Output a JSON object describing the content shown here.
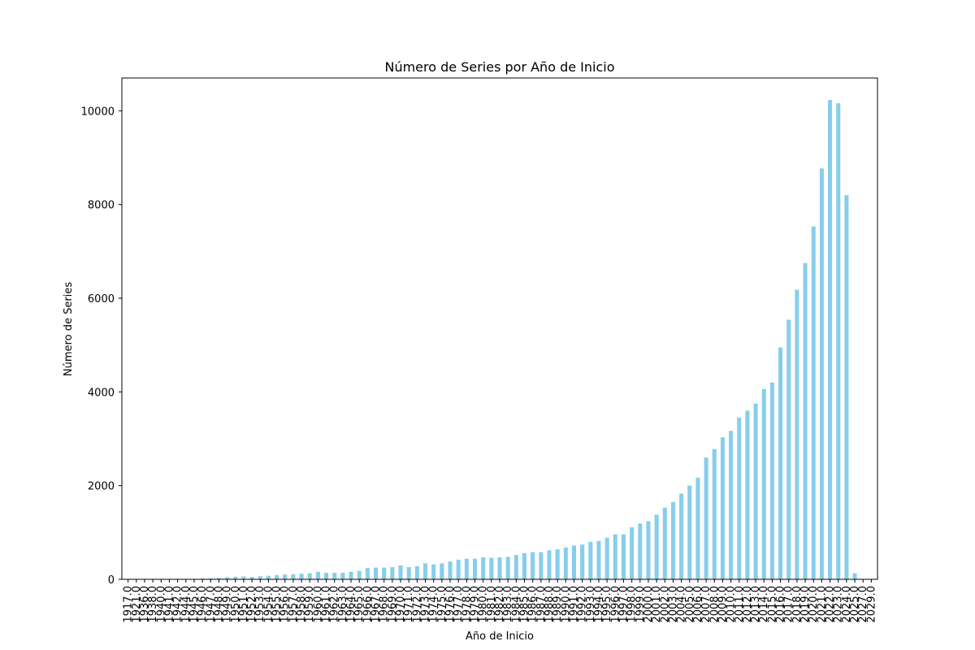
{
  "chart_data": {
    "type": "bar",
    "title": "Número de Series por Año de Inicio",
    "xlabel": "Año de Inicio",
    "ylabel": "Número de Series",
    "ylim": [
      0,
      10700
    ],
    "yticks": [
      0,
      2000,
      4000,
      6000,
      8000,
      10000
    ],
    "bar_color": "#87ceeb",
    "grid": false,
    "categories": [
      "1917.0",
      "1921.0",
      "1936.0",
      "1938.0",
      "1940.0",
      "1941.0",
      "1942.0",
      "1944.0",
      "1945.0",
      "1946.0",
      "1947.0",
      "1948.0",
      "1949.0",
      "1950.0",
      "1951.0",
      "1952.0",
      "1953.0",
      "1954.0",
      "1955.0",
      "1956.0",
      "1957.0",
      "1958.0",
      "1959.0",
      "1960.0",
      "1961.0",
      "1962.0",
      "1963.0",
      "1964.0",
      "1965.0",
      "1966.0",
      "1967.0",
      "1968.0",
      "1969.0",
      "1970.0",
      "1971.0",
      "1972.0",
      "1973.0",
      "1974.0",
      "1975.0",
      "1976.0",
      "1977.0",
      "1978.0",
      "1979.0",
      "1980.0",
      "1981.0",
      "1982.0",
      "1983.0",
      "1984.0",
      "1985.0",
      "1986.0",
      "1987.0",
      "1988.0",
      "1989.0",
      "1990.0",
      "1991.0",
      "1992.0",
      "1993.0",
      "1994.0",
      "1995.0",
      "1996.0",
      "1997.0",
      "1998.0",
      "1999.0",
      "2000.0",
      "2001.0",
      "2002.0",
      "2003.0",
      "2004.0",
      "2005.0",
      "2006.0",
      "2007.0",
      "2008.0",
      "2009.0",
      "2010.0",
      "2011.0",
      "2012.0",
      "2013.0",
      "2014.0",
      "2015.0",
      "2016.0",
      "2017.0",
      "2018.0",
      "2019.0",
      "2020.0",
      "2021.0",
      "2022.0",
      "2023.0",
      "2024.0",
      "2025.0",
      "2027.0",
      "2029.0"
    ],
    "values": [
      1,
      1,
      1,
      1,
      1,
      2,
      2,
      3,
      5,
      15,
      20,
      30,
      45,
      55,
      60,
      50,
      65,
      75,
      90,
      100,
      110,
      120,
      130,
      160,
      140,
      140,
      140,
      160,
      180,
      240,
      250,
      250,
      260,
      300,
      260,
      280,
      340,
      320,
      340,
      380,
      420,
      440,
      440,
      470,
      460,
      470,
      480,
      520,
      560,
      580,
      580,
      620,
      640,
      680,
      720,
      740,
      800,
      820,
      890,
      960,
      960,
      1110,
      1190,
      1240,
      1380,
      1530,
      1650,
      1830,
      2000,
      2170,
      2600,
      2780,
      3030,
      3170,
      3450,
      3600,
      3750,
      4060,
      4200,
      4950,
      5540,
      6180,
      6750,
      7530,
      8770,
      10230,
      10160,
      8200,
      130,
      5,
      1
    ]
  }
}
